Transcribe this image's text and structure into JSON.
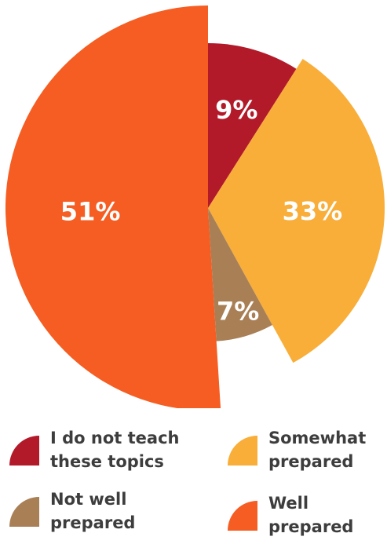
{
  "chart_data": {
    "type": "pie",
    "categories": [
      "I do not teach these topics",
      "Somewhat prepared",
      "Not well prepared",
      "Well prepared"
    ],
    "values": [
      9,
      33,
      7,
      51
    ],
    "labels": [
      "9%",
      "33%",
      "7%",
      "51%"
    ],
    "colors": [
      "#b21a2a",
      "#f8ae39",
      "#a97f55",
      "#f55d22"
    ],
    "legend_position": "bottom"
  },
  "legend": {
    "items": [
      {
        "text": "I do not teach\nthese topics",
        "color": "#b21a2a"
      },
      {
        "text": "Somewhat\nprepared",
        "color": "#f8ae39"
      },
      {
        "text": "Not well\nprepared",
        "color": "#a97f55"
      },
      {
        "text": "Well\nprepared",
        "color": "#f55d22"
      }
    ]
  }
}
